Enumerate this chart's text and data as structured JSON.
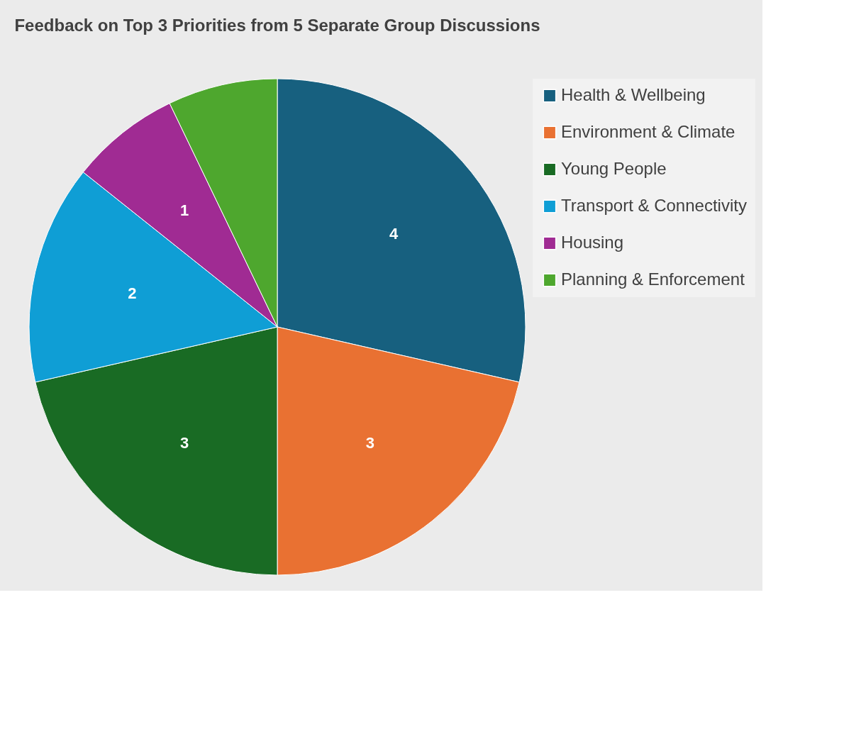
{
  "chart_data": {
    "type": "pie",
    "title": "Feedback on Top 3 Priorities from 5 Separate Group Discussions",
    "categories": [
      "Health & Wellbeing",
      "Environment & Climate",
      "Young People",
      "Transport & Connectivity",
      "Housing",
      "Planning & Enforcement"
    ],
    "values": [
      4,
      3,
      3,
      2,
      1,
      1
    ],
    "colors": [
      "#17607f",
      "#e97132",
      "#196b24",
      "#0f9ed5",
      "#a02b93",
      "#4ea72e"
    ],
    "value_labels": [
      "4",
      "3",
      "3",
      "2",
      "1",
      null
    ],
    "legend": "right"
  }
}
